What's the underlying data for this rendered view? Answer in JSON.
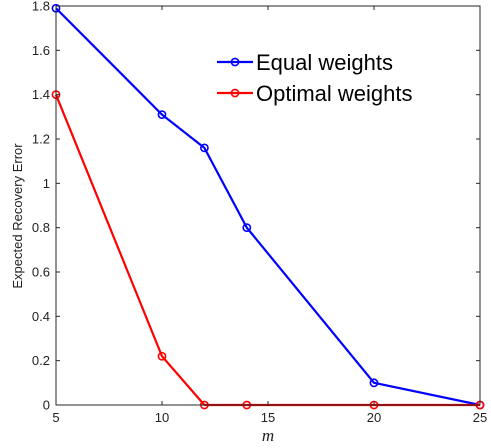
{
  "chart_data": {
    "type": "line",
    "title": "",
    "xlabel": "m",
    "ylabel": "Expected Recovery Error",
    "xlim": [
      5,
      25
    ],
    "ylim": [
      0,
      1.8
    ],
    "xticks": [
      5,
      10,
      15,
      20,
      25
    ],
    "yticks": [
      0,
      0.2,
      0.4,
      0.6,
      0.8,
      1,
      1.2,
      1.4,
      1.6,
      1.8
    ],
    "xtick_labels": [
      "5",
      "10",
      "15",
      "20",
      "25"
    ],
    "ytick_labels": [
      "0",
      "0.2",
      "0.4",
      "0.6",
      "0.8",
      "1",
      "1.2",
      "1.4",
      "1.6",
      "1.8"
    ],
    "grid": false,
    "legend_position": "top-right",
    "series": [
      {
        "name": "Equal weights",
        "color": "#0000ff",
        "marker": "circle",
        "x": [
          5,
          10,
          12,
          14,
          20,
          25
        ],
        "y": [
          1.79,
          1.31,
          1.16,
          0.8,
          0.1,
          0.0
        ]
      },
      {
        "name": "Optimal weights",
        "color": "#ff0000",
        "marker": "circle",
        "x": [
          5,
          10,
          12,
          14,
          20,
          25
        ],
        "y": [
          1.4,
          0.22,
          0.0,
          0.0,
          0.0,
          0.0
        ]
      }
    ]
  }
}
